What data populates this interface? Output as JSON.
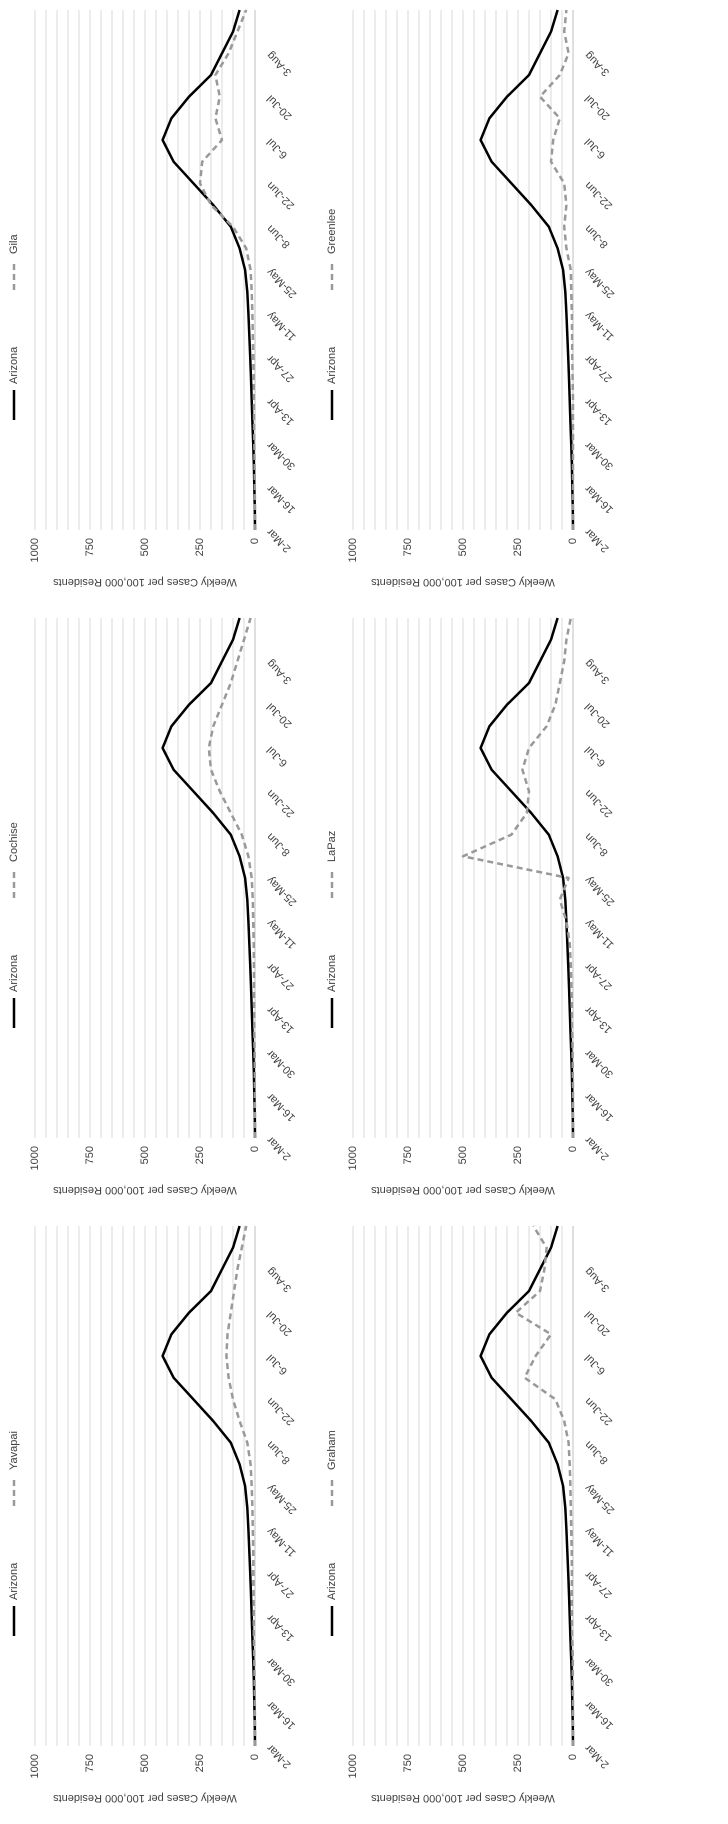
{
  "chart_data": [
    {
      "type": "line",
      "y_label": "Weekly Cases per 100,000 Residents",
      "categories": [
        "2-Mar",
        null,
        "16-Mar",
        null,
        "30-Mar",
        null,
        "13-Apr",
        null,
        "27-Apr",
        null,
        "11-May",
        null,
        "25-May",
        null,
        "8-Jun",
        null,
        "22-Jun",
        null,
        "6-Jul",
        null,
        "20-Jul",
        null,
        "3-Aug",
        null,
        null
      ],
      "ylim": [
        0,
        1000
      ],
      "yticks": [
        0,
        250,
        500,
        750,
        1000
      ],
      "grid": [
        50,
        100,
        150,
        200,
        250,
        300,
        350,
        400,
        450,
        500,
        550,
        600,
        650,
        700,
        750,
        800,
        850,
        900,
        950,
        1000
      ],
      "series": [
        {
          "name": "Arizona",
          "color": "#000000",
          "dashed": false,
          "values": [
            0,
            1,
            3,
            5,
            8,
            12,
            15,
            18,
            22,
            26,
            30,
            35,
            45,
            70,
            110,
            190,
            280,
            370,
            420,
            380,
            300,
            200,
            150,
            100,
            70
          ]
        },
        {
          "name": "Yavapai",
          "color": "#999999",
          "dashed": true,
          "values": [
            0,
            0,
            1,
            2,
            3,
            5,
            6,
            7,
            8,
            8,
            10,
            12,
            15,
            20,
            35,
            70,
            100,
            120,
            130,
            125,
            110,
            95,
            80,
            60,
            40
          ]
        }
      ]
    },
    {
      "type": "line",
      "y_label": "Weekly Cases per 100,000 Residents",
      "categories": [
        "2-Mar",
        null,
        "16-Mar",
        null,
        "30-Mar",
        null,
        "13-Apr",
        null,
        "27-Apr",
        null,
        "11-May",
        null,
        "25-May",
        null,
        "8-Jun",
        null,
        "22-Jun",
        null,
        "6-Jul",
        null,
        "20-Jul",
        null,
        "3-Aug",
        null,
        null
      ],
      "ylim": [
        0,
        1000
      ],
      "yticks": [
        0,
        250,
        500,
        750,
        1000
      ],
      "grid": [
        50,
        100,
        150,
        200,
        250,
        300,
        350,
        400,
        450,
        500,
        550,
        600,
        650,
        700,
        750,
        800,
        850,
        900,
        950,
        1000
      ],
      "series": [
        {
          "name": "Arizona",
          "color": "#000000",
          "dashed": false,
          "values": [
            0,
            1,
            3,
            5,
            8,
            12,
            15,
            18,
            22,
            26,
            30,
            35,
            45,
            70,
            110,
            190,
            280,
            370,
            420,
            380,
            300,
            200,
            150,
            100,
            70
          ]
        },
        {
          "name": "Cochise",
          "color": "#999999",
          "dashed": true,
          "values": [
            0,
            0,
            1,
            1,
            2,
            3,
            3,
            4,
            5,
            6,
            8,
            10,
            15,
            30,
            60,
            110,
            160,
            200,
            210,
            190,
            150,
            110,
            80,
            50,
            20
          ]
        }
      ]
    },
    {
      "type": "line",
      "y_label": "Weekly Cases per 100,000 Residents",
      "categories": [
        "2-Mar",
        null,
        "16-Mar",
        null,
        "30-Mar",
        null,
        "13-Apr",
        null,
        "27-Apr",
        null,
        "11-May",
        null,
        "25-May",
        null,
        "8-Jun",
        null,
        "22-Jun",
        null,
        "6-Jul",
        null,
        "20-Jul",
        null,
        "3-Aug",
        null,
        null
      ],
      "ylim": [
        0,
        1000
      ],
      "yticks": [
        0,
        250,
        500,
        750,
        1000
      ],
      "grid": [
        50,
        100,
        150,
        200,
        250,
        300,
        350,
        400,
        450,
        500,
        550,
        600,
        650,
        700,
        750,
        800,
        850,
        900,
        950,
        1000
      ],
      "series": [
        {
          "name": "Arizona",
          "color": "#000000",
          "dashed": false,
          "values": [
            0,
            1,
            3,
            5,
            8,
            12,
            15,
            18,
            22,
            26,
            30,
            35,
            45,
            70,
            110,
            190,
            280,
            370,
            420,
            380,
            300,
            200,
            150,
            100,
            70
          ]
        },
        {
          "name": "Gila",
          "color": "#999999",
          "dashed": true,
          "values": [
            0,
            0,
            1,
            2,
            3,
            4,
            5,
            6,
            8,
            10,
            12,
            15,
            20,
            40,
            100,
            200,
            250,
            240,
            150,
            180,
            160,
            180,
            120,
            80,
            40
          ]
        }
      ]
    },
    {
      "type": "line",
      "y_label": "Weekly Cases per 100,000 Residents",
      "categories": [
        "2-Mar",
        null,
        "16-Mar",
        null,
        "30-Mar",
        null,
        "13-Apr",
        null,
        "27-Apr",
        null,
        "11-May",
        null,
        "25-May",
        null,
        "8-Jun",
        null,
        "22-Jun",
        null,
        "6-Jul",
        null,
        "20-Jul",
        null,
        "3-Aug",
        null,
        null
      ],
      "ylim": [
        0,
        1000
      ],
      "yticks": [
        0,
        250,
        500,
        750,
        1000
      ],
      "grid": [
        50,
        100,
        150,
        200,
        250,
        300,
        350,
        400,
        450,
        500,
        550,
        600,
        650,
        700,
        750,
        800,
        850,
        900,
        950,
        1000
      ],
      "series": [
        {
          "name": "Arizona",
          "color": "#000000",
          "dashed": false,
          "values": [
            0,
            1,
            3,
            5,
            8,
            12,
            15,
            18,
            22,
            26,
            30,
            35,
            45,
            70,
            110,
            190,
            280,
            370,
            420,
            380,
            300,
            200,
            150,
            100,
            70
          ]
        },
        {
          "name": "Graham",
          "color": "#999999",
          "dashed": true,
          "values": [
            0,
            0,
            0,
            1,
            1,
            3,
            5,
            6,
            5,
            6,
            8,
            10,
            12,
            15,
            20,
            40,
            80,
            220,
            170,
            100,
            260,
            150,
            130,
            120,
            180
          ]
        }
      ]
    },
    {
      "type": "line",
      "y_label": "Weekly Cases per 100,000 Residents",
      "categories": [
        "2-Mar",
        null,
        "16-Mar",
        null,
        "30-Mar",
        null,
        "13-Apr",
        null,
        "27-Apr",
        null,
        "11-May",
        null,
        "25-May",
        null,
        "8-Jun",
        null,
        "22-Jun",
        null,
        "6-Jul",
        null,
        "20-Jul",
        null,
        "3-Aug",
        null,
        null
      ],
      "ylim": [
        0,
        1000
      ],
      "yticks": [
        0,
        250,
        500,
        750,
        1000
      ],
      "grid": [
        50,
        100,
        150,
        200,
        250,
        300,
        350,
        400,
        450,
        500,
        550,
        600,
        650,
        700,
        750,
        800,
        850,
        900,
        950,
        1000
      ],
      "series": [
        {
          "name": "Arizona",
          "color": "#000000",
          "dashed": false,
          "values": [
            0,
            1,
            3,
            5,
            8,
            12,
            15,
            18,
            22,
            26,
            30,
            35,
            45,
            70,
            110,
            190,
            280,
            370,
            420,
            380,
            300,
            200,
            150,
            100,
            70
          ]
        },
        {
          "name": "LaPaz",
          "color": "#999999",
          "dashed": true,
          "values": [
            0,
            0,
            0,
            1,
            2,
            3,
            5,
            8,
            10,
            15,
            30,
            60,
            20,
            500,
            280,
            210,
            200,
            230,
            200,
            120,
            80,
            60,
            40,
            30,
            10
          ]
        }
      ]
    },
    {
      "type": "line",
      "y_label": "Weekly Cases per 100,000 Residents",
      "categories": [
        "2-Mar",
        null,
        "16-Mar",
        null,
        "30-Mar",
        null,
        "13-Apr",
        null,
        "27-Apr",
        null,
        "11-May",
        null,
        "25-May",
        null,
        "8-Jun",
        null,
        "22-Jun",
        null,
        "6-Jul",
        null,
        "20-Jul",
        null,
        "3-Aug",
        null,
        null
      ],
      "ylim": [
        0,
        1000
      ],
      "yticks": [
        0,
        250,
        500,
        750,
        1000
      ],
      "grid": [
        50,
        100,
        150,
        200,
        250,
        300,
        350,
        400,
        450,
        500,
        550,
        600,
        650,
        700,
        750,
        800,
        850,
        900,
        950,
        1000
      ],
      "series": [
        {
          "name": "Arizona",
          "color": "#000000",
          "dashed": false,
          "values": [
            0,
            1,
            3,
            5,
            8,
            12,
            15,
            18,
            22,
            26,
            30,
            35,
            45,
            70,
            110,
            190,
            280,
            370,
            420,
            380,
            300,
            200,
            150,
            100,
            70
          ]
        },
        {
          "name": "Greenlee",
          "color": "#999999",
          "dashed": true,
          "values": [
            0,
            0,
            0,
            0,
            0,
            0,
            0,
            2,
            3,
            4,
            5,
            8,
            10,
            30,
            40,
            30,
            40,
            100,
            90,
            60,
            150,
            60,
            20,
            40,
            30
          ]
        }
      ]
    }
  ]
}
